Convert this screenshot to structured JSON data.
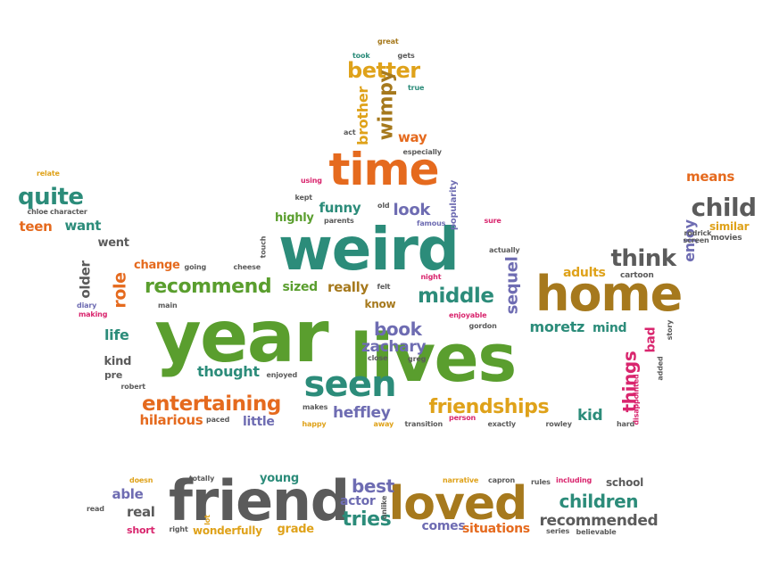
{
  "colors": {
    "green": "#5a9e2e",
    "teal": "#2c8c7a",
    "orange": "#e56a1e",
    "gold": "#dfa21a",
    "brown": "#a6791d",
    "gray": "#5b5b5b",
    "purple": "#6e6cb2",
    "pink": "#d9266e",
    "blue": "#4e5aa8"
  },
  "words": [
    {
      "text": "year",
      "color": "green"
    },
    {
      "text": "lives",
      "color": "green"
    },
    {
      "text": "weird",
      "color": "teal"
    },
    {
      "text": "home",
      "color": "brown"
    },
    {
      "text": "friend",
      "color": "gray"
    },
    {
      "text": "loved",
      "color": "brown"
    },
    {
      "text": "time",
      "color": "orange"
    },
    {
      "text": "seen",
      "color": "teal"
    },
    {
      "text": "better",
      "color": "gold"
    },
    {
      "text": "wimpy",
      "color": "brown"
    },
    {
      "text": "brother",
      "color": "gold"
    },
    {
      "text": "way",
      "color": "orange"
    },
    {
      "text": "quite",
      "color": "teal"
    },
    {
      "text": "teen",
      "color": "orange"
    },
    {
      "text": "want",
      "color": "teal"
    },
    {
      "text": "child",
      "color": "gray"
    },
    {
      "text": "means",
      "color": "orange"
    },
    {
      "text": "think",
      "color": "gray"
    },
    {
      "text": "enjoy",
      "color": "purple"
    },
    {
      "text": "similar",
      "color": "gold"
    },
    {
      "text": "movies",
      "color": "gray"
    },
    {
      "text": "rodrick",
      "color": "gray"
    },
    {
      "text": "screen",
      "color": "gray"
    },
    {
      "text": "adults",
      "color": "gold"
    },
    {
      "text": "cartoon",
      "color": "gray"
    },
    {
      "text": "recommend",
      "color": "green"
    },
    {
      "text": "middle",
      "color": "teal"
    },
    {
      "text": "sequel",
      "color": "purple"
    },
    {
      "text": "book",
      "color": "purple"
    },
    {
      "text": "moretz",
      "color": "teal"
    },
    {
      "text": "mind",
      "color": "teal"
    },
    {
      "text": "zachary",
      "color": "purple"
    },
    {
      "text": "things",
      "color": "pink"
    },
    {
      "text": "bad",
      "color": "pink"
    },
    {
      "text": "story",
      "color": "gray"
    },
    {
      "text": "added",
      "color": "gray"
    },
    {
      "text": "entertaining",
      "color": "orange"
    },
    {
      "text": "friendships",
      "color": "gold"
    },
    {
      "text": "heffley",
      "color": "purple"
    },
    {
      "text": "kid",
      "color": "teal"
    },
    {
      "text": "hilarious",
      "color": "orange"
    },
    {
      "text": "little",
      "color": "purple"
    },
    {
      "text": "thought",
      "color": "teal"
    },
    {
      "text": "look",
      "color": "purple"
    },
    {
      "text": "funny",
      "color": "teal"
    },
    {
      "text": "highly",
      "color": "green"
    },
    {
      "text": "really",
      "color": "brown"
    },
    {
      "text": "sized",
      "color": "green"
    },
    {
      "text": "change",
      "color": "orange"
    },
    {
      "text": "role",
      "color": "orange"
    },
    {
      "text": "went",
      "color": "gray"
    },
    {
      "text": "older",
      "color": "gray"
    },
    {
      "text": "life",
      "color": "teal"
    },
    {
      "text": "kind",
      "color": "gray"
    },
    {
      "text": "pre",
      "color": "gray"
    },
    {
      "text": "children",
      "color": "teal"
    },
    {
      "text": "recommended",
      "color": "gray"
    },
    {
      "text": "school",
      "color": "gray"
    },
    {
      "text": "best",
      "color": "purple"
    },
    {
      "text": "tries",
      "color": "teal"
    },
    {
      "text": "actor",
      "color": "purple"
    },
    {
      "text": "grade",
      "color": "gold"
    },
    {
      "text": "young",
      "color": "teal"
    },
    {
      "text": "able",
      "color": "purple"
    },
    {
      "text": "real",
      "color": "gray"
    },
    {
      "text": "short",
      "color": "pink"
    },
    {
      "text": "wonderfully",
      "color": "gold"
    },
    {
      "text": "comes",
      "color": "purple"
    },
    {
      "text": "situations",
      "color": "orange"
    },
    {
      "text": "popularity",
      "color": "purple"
    },
    {
      "text": "know",
      "color": "brown"
    },
    {
      "text": "great",
      "color": "brown"
    },
    {
      "text": "took",
      "color": "teal"
    },
    {
      "text": "gets",
      "color": "gray"
    },
    {
      "text": "true",
      "color": "teal"
    },
    {
      "text": "act",
      "color": "gray"
    },
    {
      "text": "especially",
      "color": "gray"
    },
    {
      "text": "using",
      "color": "pink"
    },
    {
      "text": "kept",
      "color": "gray"
    },
    {
      "text": "parents",
      "color": "gray"
    },
    {
      "text": "old",
      "color": "gray"
    },
    {
      "text": "famous",
      "color": "purple"
    },
    {
      "text": "sure",
      "color": "pink"
    },
    {
      "text": "actually",
      "color": "gray"
    },
    {
      "text": "relate",
      "color": "gold"
    },
    {
      "text": "chloe",
      "color": "gray"
    },
    {
      "text": "character",
      "color": "gray"
    },
    {
      "text": "going",
      "color": "gray"
    },
    {
      "text": "cheese",
      "color": "gray"
    },
    {
      "text": "touch",
      "color": "gray"
    },
    {
      "text": "felt",
      "color": "gray"
    },
    {
      "text": "night",
      "color": "pink"
    },
    {
      "text": "diary",
      "color": "purple"
    },
    {
      "text": "main",
      "color": "gray"
    },
    {
      "text": "making",
      "color": "pink"
    },
    {
      "text": "robert",
      "color": "gray"
    },
    {
      "text": "enjoyed",
      "color": "gray"
    },
    {
      "text": "enjoyable",
      "color": "pink"
    },
    {
      "text": "gordon",
      "color": "gray"
    },
    {
      "text": "close",
      "color": "gray"
    },
    {
      "text": "greg",
      "color": "gray"
    },
    {
      "text": "makes",
      "color": "gray"
    },
    {
      "text": "paced",
      "color": "gray"
    },
    {
      "text": "happy",
      "color": "gold"
    },
    {
      "text": "away",
      "color": "gold"
    },
    {
      "text": "transition",
      "color": "gray"
    },
    {
      "text": "person",
      "color": "pink"
    },
    {
      "text": "exactly",
      "color": "gray"
    },
    {
      "text": "rowley",
      "color": "gray"
    },
    {
      "text": "hard",
      "color": "gray"
    },
    {
      "text": "disappointed",
      "color": "pink"
    },
    {
      "text": "doesn",
      "color": "gold"
    },
    {
      "text": "totally",
      "color": "gray"
    },
    {
      "text": "read",
      "color": "gray"
    },
    {
      "text": "lot",
      "color": "gold"
    },
    {
      "text": "right",
      "color": "gray"
    },
    {
      "text": "unlike",
      "color": "gray"
    },
    {
      "text": "narrative",
      "color": "gold"
    },
    {
      "text": "capron",
      "color": "gray"
    },
    {
      "text": "rules",
      "color": "gray"
    },
    {
      "text": "including",
      "color": "pink"
    },
    {
      "text": "series",
      "color": "gray"
    },
    {
      "text": "believable",
      "color": "gray"
    }
  ]
}
